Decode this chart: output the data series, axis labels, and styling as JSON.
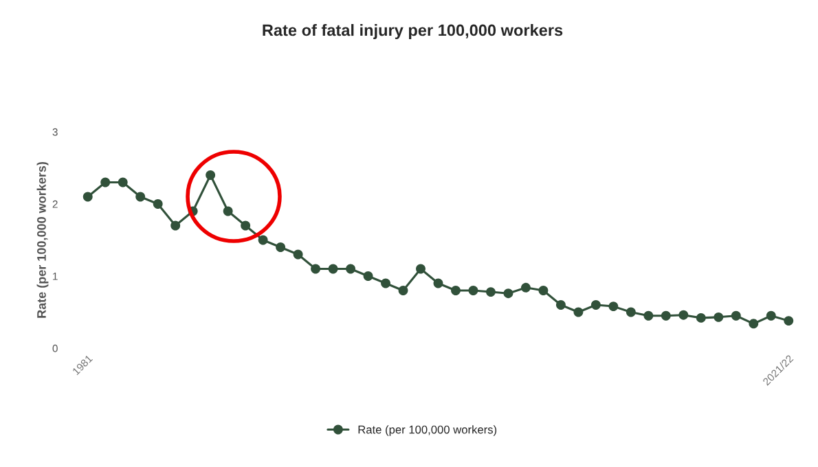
{
  "chart_data": {
    "type": "line",
    "title": "Rate of fatal injury per 100,000 workers",
    "ylabel": "Rate (per 100,000 workers)",
    "categories": [
      "1981",
      null,
      null,
      null,
      null,
      null,
      null,
      null,
      null,
      null,
      null,
      null,
      null,
      null,
      null,
      null,
      null,
      null,
      null,
      null,
      null,
      null,
      null,
      null,
      null,
      null,
      null,
      null,
      null,
      null,
      null,
      null,
      null,
      null,
      null,
      null,
      null,
      null,
      null,
      null,
      "2021/22"
    ],
    "series": [
      {
        "name": "Rate (per 100,000 workers)",
        "color": "#31513a",
        "values": [
          2.1,
          2.3,
          2.3,
          2.1,
          2.0,
          1.7,
          1.9,
          2.4,
          1.9,
          1.7,
          1.5,
          1.4,
          1.3,
          1.1,
          1.1,
          1.1,
          1.0,
          0.9,
          0.8,
          1.1,
          0.9,
          0.8,
          0.8,
          0.78,
          0.76,
          0.84,
          0.8,
          0.6,
          0.5,
          0.6,
          0.58,
          0.5,
          0.45,
          0.45,
          0.46,
          0.42,
          0.43,
          0.45,
          0.34,
          0.45,
          0.38
        ]
      }
    ],
    "ylim": [
      0,
      3
    ],
    "yticks": [
      0,
      1,
      2,
      3
    ],
    "grid": false,
    "legend": "bottom",
    "marker": "circle",
    "line_style": "solid"
  }
}
